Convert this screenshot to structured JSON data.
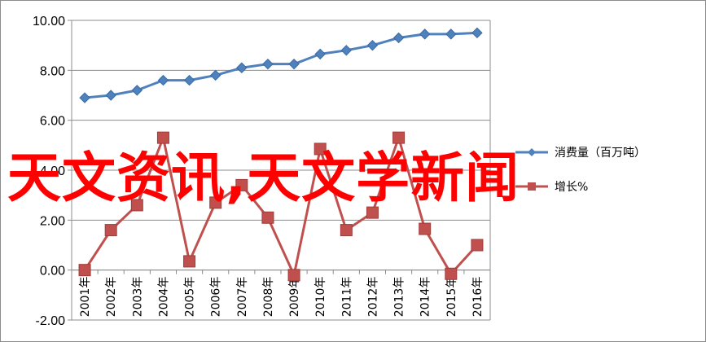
{
  "overlay_text": "天文资讯,天文学新闻",
  "chart_data": {
    "type": "line",
    "x": [
      "2001年",
      "2002年",
      "2003年",
      "2004年",
      "2005年",
      "2006年",
      "2007年",
      "2008年",
      "2009年",
      "2010年",
      "2011年",
      "2012年",
      "2013年",
      "2014年",
      "2015年",
      "2016年"
    ],
    "ylim": [
      -2.0,
      10.0
    ],
    "yticks": [
      "-2.00",
      "0.00",
      "2.00",
      "4.00",
      "6.00",
      "8.00",
      "10.00"
    ],
    "grid": "horizontal",
    "legend_position": "right",
    "series": [
      {
        "name": "消费量（百万吨）",
        "color": "#4f81bd",
        "marker": "diamond",
        "values": [
          6.9,
          7.0,
          7.2,
          7.6,
          7.6,
          7.8,
          8.1,
          8.25,
          8.25,
          8.65,
          8.8,
          9.0,
          9.3,
          9.45,
          9.45,
          9.5
        ]
      },
      {
        "name": "增长%",
        "color": "#c0504d",
        "marker": "square",
        "values": [
          0.0,
          1.6,
          2.6,
          5.3,
          0.35,
          2.7,
          3.4,
          2.1,
          -0.2,
          4.85,
          1.6,
          2.3,
          5.3,
          1.65,
          -0.15,
          1.0
        ]
      }
    ]
  }
}
